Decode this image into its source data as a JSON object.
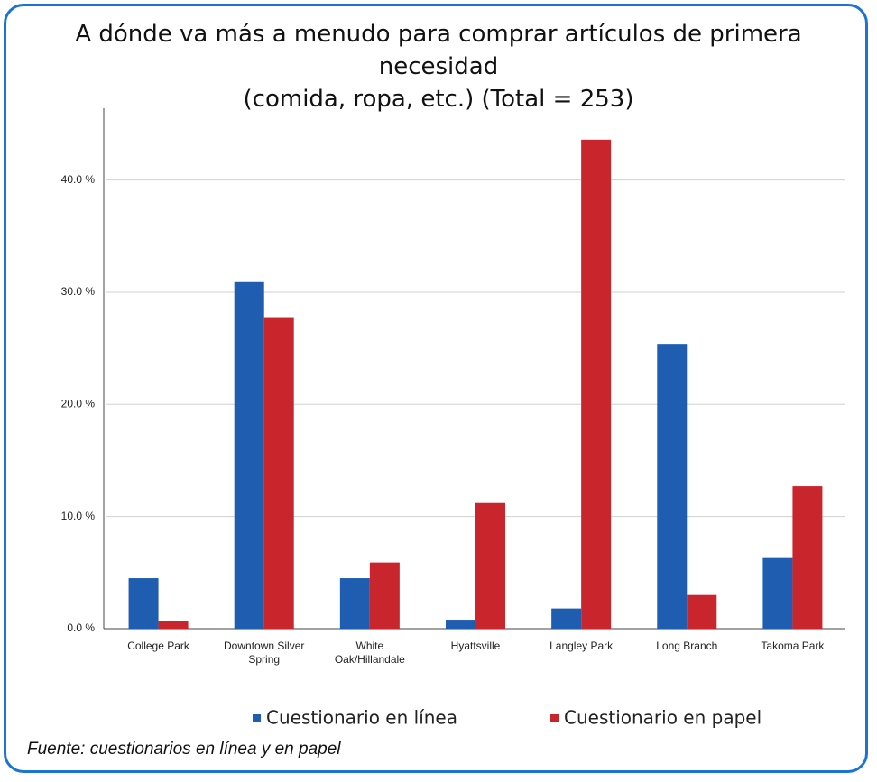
{
  "chart_data": {
    "type": "bar",
    "title": "A dónde va más a menudo para comprar artículos de primera necesidad",
    "subtitle": "(comida, ropa, etc.) (Total = 253)",
    "categories": [
      "College Park",
      "Downtown Silver Spring",
      "White Oak/Hillandale",
      "Hyattsville",
      "Langley Park",
      "Long Branch",
      "Takoma Park"
    ],
    "series": [
      {
        "name": "Cuestionario en línea",
        "color": "#1f5db0",
        "values": [
          4.5,
          30.9,
          4.5,
          0.8,
          1.8,
          25.4,
          6.3
        ]
      },
      {
        "name": "Cuestionario en papel",
        "color": "#c8252c",
        "values": [
          0.7,
          27.7,
          5.9,
          11.2,
          43.6,
          3.0,
          12.7
        ]
      }
    ],
    "ylim": [
      0,
      46
    ],
    "yticks": [
      {
        "value": 0,
        "label": "0.0 %"
      },
      {
        "value": 10,
        "label": "10.0 %"
      },
      {
        "value": 20,
        "label": "20.0 %"
      },
      {
        "value": 30,
        "label": "30.0 %"
      },
      {
        "value": 40,
        "label": "40.0 %"
      }
    ],
    "grid": true,
    "legend": "bottom",
    "source": "Fuente: cuestionarios en línea y en papel"
  }
}
